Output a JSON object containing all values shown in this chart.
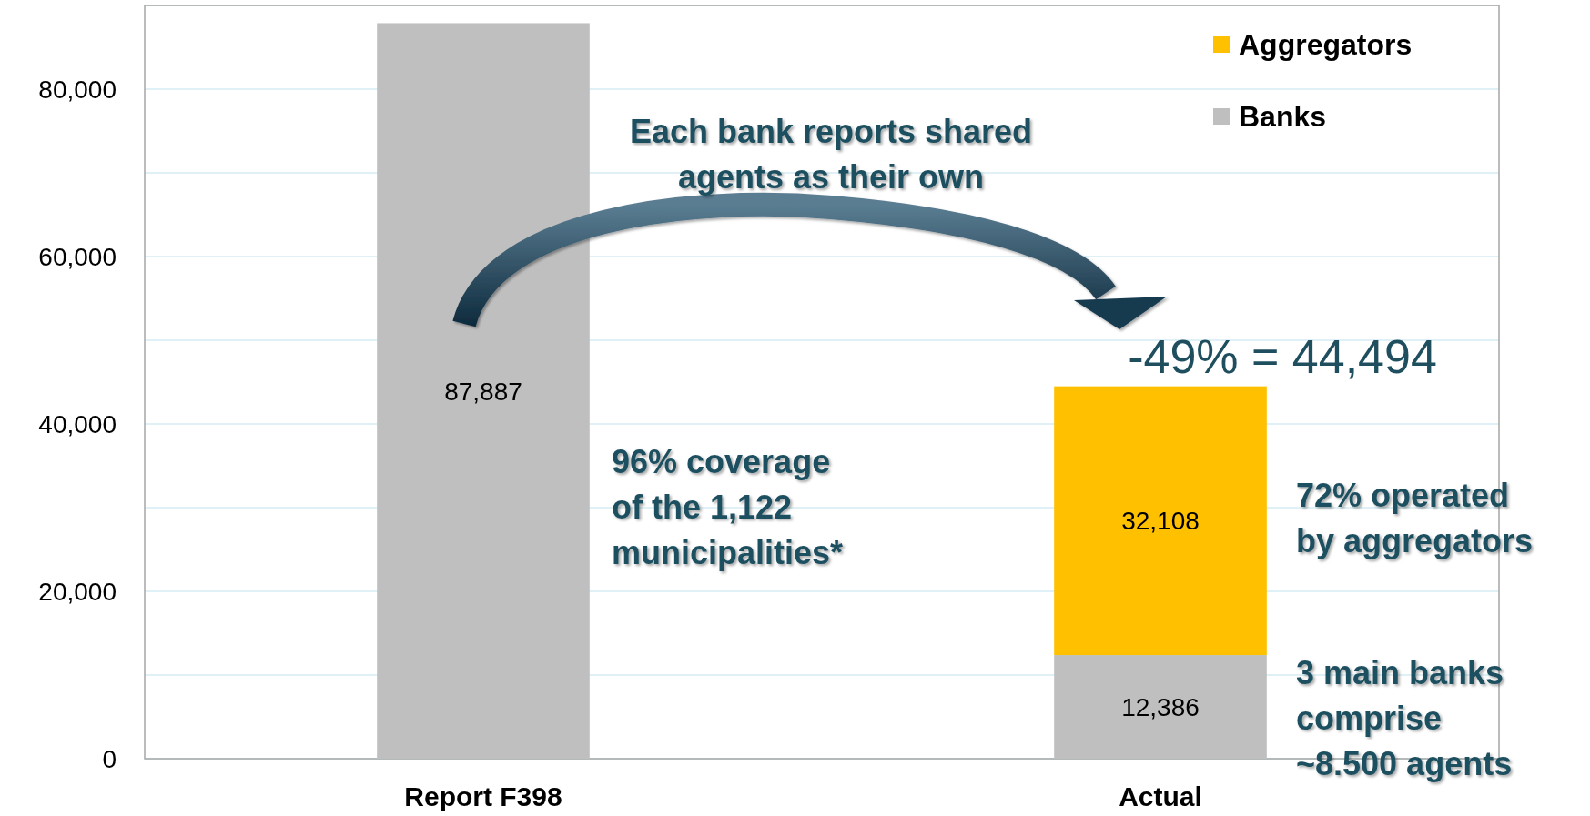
{
  "chart_data": {
    "type": "bar",
    "stacked": true,
    "categories": [
      "Report F398",
      "Actual"
    ],
    "series": [
      {
        "name": "Banks",
        "color": "#bfbfbf",
        "values": [
          87887,
          12386
        ],
        "value_labels": [
          "87,887",
          "12,386"
        ]
      },
      {
        "name": "Aggregators",
        "color": "#ffc000",
        "values": [
          null,
          32108
        ],
        "value_labels": [
          null,
          "32,108"
        ]
      }
    ],
    "ylim": [
      0,
      90000
    ],
    "yticks": [
      0,
      {
        "value": 10000,
        "label": null
      },
      {
        "value": 20000,
        "label": "20,000"
      },
      {
        "value": 30000,
        "label": null
      },
      {
        "value": 40000,
        "label": "40,000"
      },
      {
        "value": 50000,
        "label": null
      },
      {
        "value": 60000,
        "label": "60,000"
      },
      {
        "value": 70000,
        "label": null
      },
      {
        "value": 80000,
        "label": "80,000"
      },
      {
        "value": 90000,
        "label": null
      }
    ],
    "grid": "y",
    "legend": "top right",
    "annotations": [
      "Each bank reports shared agents as their own",
      "-49% = 44,494",
      "96% coverage of the 1,122 municipalities*",
      "72% operated by aggregators",
      "3 main banks comprise ~8.500 agents"
    ]
  }
}
